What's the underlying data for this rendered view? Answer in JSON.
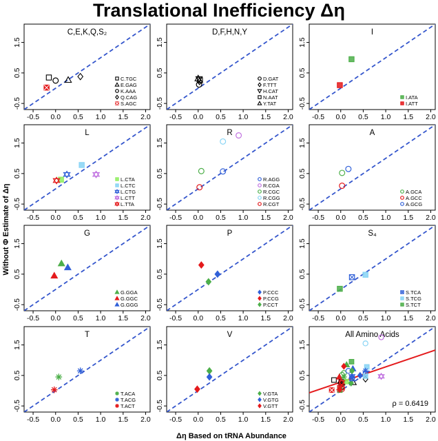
{
  "figure": {
    "title": "Translational Inefficiency Δη",
    "xlabel": "Δη Based on tRNA Abundance",
    "ylabel": "Without Φ Estimate of Δη"
  },
  "chart_data": [
    {
      "type": "scatter",
      "title": "C,E,K,Q,S₂",
      "xlim": [
        -0.7,
        2.1
      ],
      "ylim": [
        -0.7,
        2.1
      ],
      "xticks": [
        "-0.5",
        "0.0",
        "0.5",
        "1.0",
        "1.5",
        "2.0"
      ],
      "yticks": [
        "-0.5",
        "0.5",
        "1.5"
      ],
      "identity_line": true,
      "legend_position": "bottom-right",
      "series": [
        {
          "name": "C.TGC",
          "marker": "square",
          "color": "#000000",
          "x": [
            -0.15
          ],
          "y": [
            0.35
          ]
        },
        {
          "name": "E.GAG",
          "marker": "triangle",
          "color": "#000000",
          "x": [
            0.28
          ],
          "y": [
            0.27
          ]
        },
        {
          "name": "K.AAA",
          "marker": "circle",
          "color": "#000000",
          "x": [
            0.0
          ],
          "y": [
            0.25
          ]
        },
        {
          "name": "Q.CAG",
          "marker": "diamond",
          "color": "#000000",
          "x": [
            0.55
          ],
          "y": [
            0.38
          ]
        },
        {
          "name": "S.AGC",
          "marker": "square-x",
          "color": "#e41a1c",
          "x": [
            -0.2
          ],
          "y": [
            0.02
          ]
        }
      ]
    },
    {
      "type": "scatter",
      "title": "D,F,H,N,Y",
      "xlim": [
        -0.7,
        2.1
      ],
      "ylim": [
        -0.7,
        2.1
      ],
      "xticks": [
        "-0.5",
        "0.0",
        "0.5",
        "1.0",
        "1.5",
        "2.0"
      ],
      "yticks": [
        "-0.5",
        "0.5",
        "1.5"
      ],
      "identity_line": true,
      "legend_position": "bottom-right",
      "series": [
        {
          "name": "D.GAT",
          "marker": "circle",
          "color": "#000000",
          "x": [
            0.02
          ],
          "y": [
            0.12
          ]
        },
        {
          "name": "F.TTT",
          "marker": "diamond",
          "color": "#000000",
          "x": [
            0.03
          ],
          "y": [
            0.22
          ]
        },
        {
          "name": "H.CAT",
          "marker": "triangle-down",
          "color": "#000000",
          "x": [
            0.02
          ],
          "y": [
            0.3
          ]
        },
        {
          "name": "N.AAT",
          "marker": "square",
          "color": "#000000",
          "x": [
            0.04
          ],
          "y": [
            0.26
          ]
        },
        {
          "name": "Y.TAT",
          "marker": "triangle",
          "color": "#000000",
          "x": [
            0.0
          ],
          "y": [
            0.32
          ]
        }
      ]
    },
    {
      "type": "scatter",
      "title": "I",
      "xlim": [
        -0.7,
        2.1
      ],
      "ylim": [
        -0.7,
        2.1
      ],
      "xticks": [
        "-0.5",
        "0.0",
        "0.5",
        "1.0",
        "1.5",
        "2.0"
      ],
      "yticks": [
        "-0.5",
        "0.5",
        "1.5"
      ],
      "identity_line": true,
      "legend_position": "bottom-right",
      "series": [
        {
          "name": "I.ATA",
          "marker": "square",
          "color": "#4daf4a",
          "x": [
            0.24
          ],
          "y": [
            0.95
          ]
        },
        {
          "name": "I.ATT",
          "marker": "square",
          "color": "#e41a1c",
          "x": [
            -0.02
          ],
          "y": [
            0.1
          ]
        }
      ]
    },
    {
      "type": "scatter",
      "title": "L",
      "xlim": [
        -0.7,
        2.1
      ],
      "ylim": [
        -0.7,
        2.1
      ],
      "xticks": [
        "-0.5",
        "0.0",
        "0.5",
        "1.0",
        "1.5",
        "2.0"
      ],
      "yticks": [
        "-0.5",
        "0.5",
        "1.5"
      ],
      "identity_line": true,
      "legend_position": "bottom-right",
      "series": [
        {
          "name": "L.CTA",
          "marker": "square",
          "color": "#90ee60",
          "x": [
            0.12
          ],
          "y": [
            0.3
          ]
        },
        {
          "name": "L.CTC",
          "marker": "square",
          "color": "#87d4f5",
          "x": [
            0.58
          ],
          "y": [
            0.78
          ]
        },
        {
          "name": "L.CTG",
          "marker": "star",
          "color": "#3060d8",
          "x": [
            0.25
          ],
          "y": [
            0.47
          ]
        },
        {
          "name": "L.CTT",
          "marker": "star",
          "color": "#c070e0",
          "x": [
            0.9
          ],
          "y": [
            0.47
          ]
        },
        {
          "name": "L.TTA",
          "marker": "star",
          "color": "#e41a1c",
          "x": [
            0.02
          ],
          "y": [
            0.27
          ]
        }
      ]
    },
    {
      "type": "scatter",
      "title": "R",
      "xlim": [
        -0.7,
        2.1
      ],
      "ylim": [
        -0.7,
        2.1
      ],
      "xticks": [
        "-0.5",
        "0.0",
        "0.5",
        "1.0",
        "1.5",
        "2.0"
      ],
      "yticks": [
        "-0.5",
        "0.5",
        "1.5"
      ],
      "identity_line": true,
      "legend_position": "bottom-right",
      "series": [
        {
          "name": "R.AGG",
          "marker": "circle",
          "color": "#3060d8",
          "x": [
            0.55
          ],
          "y": [
            0.57
          ]
        },
        {
          "name": "R.CGA",
          "marker": "circle",
          "color": "#c070e0",
          "x": [
            0.9
          ],
          "y": [
            1.75
          ]
        },
        {
          "name": "R.CGC",
          "marker": "circle",
          "color": "#4daf4a",
          "x": [
            0.07
          ],
          "y": [
            0.58
          ]
        },
        {
          "name": "R.CGG",
          "marker": "circle",
          "color": "#87d4f5",
          "x": [
            0.55
          ],
          "y": [
            1.55
          ]
        },
        {
          "name": "R.CGT",
          "marker": "circle",
          "color": "#e41a1c",
          "x": [
            0.03
          ],
          "y": [
            0.05
          ]
        }
      ]
    },
    {
      "type": "scatter",
      "title": "A",
      "xlim": [
        -0.7,
        2.1
      ],
      "ylim": [
        -0.7,
        2.1
      ],
      "xticks": [
        "-0.5",
        "0.0",
        "0.5",
        "1.0",
        "1.5",
        "2.0"
      ],
      "yticks": [
        "-0.5",
        "0.5",
        "1.5"
      ],
      "identity_line": true,
      "legend_position": "bottom-right",
      "series": [
        {
          "name": "A.GCA",
          "marker": "circle",
          "color": "#4daf4a",
          "x": [
            0.03
          ],
          "y": [
            0.52
          ]
        },
        {
          "name": "A.GCC",
          "marker": "circle",
          "color": "#e41a1c",
          "x": [
            0.03
          ],
          "y": [
            0.1
          ]
        },
        {
          "name": "A.GCG",
          "marker": "circle",
          "color": "#3060d8",
          "x": [
            0.17
          ],
          "y": [
            0.65
          ]
        }
      ]
    },
    {
      "type": "scatter",
      "title": "G",
      "xlim": [
        -0.7,
        2.1
      ],
      "ylim": [
        -0.7,
        2.1
      ],
      "xticks": [
        "-0.5",
        "0.0",
        "0.5",
        "1.0",
        "1.5",
        "2.0"
      ],
      "yticks": [
        "-0.5",
        "0.5",
        "1.5"
      ],
      "identity_line": true,
      "legend_position": "bottom-right",
      "series": [
        {
          "name": "G.GGA",
          "marker": "triangle",
          "color": "#4daf4a",
          "x": [
            0.13
          ],
          "y": [
            0.85
          ]
        },
        {
          "name": "G.GGC",
          "marker": "triangle",
          "color": "#e41a1c",
          "x": [
            -0.03
          ],
          "y": [
            0.45
          ]
        },
        {
          "name": "G.GGG",
          "marker": "triangle",
          "color": "#3060d8",
          "x": [
            0.27
          ],
          "y": [
            0.72
          ]
        }
      ]
    },
    {
      "type": "scatter",
      "title": "P",
      "xlim": [
        -0.7,
        2.1
      ],
      "ylim": [
        -0.7,
        2.1
      ],
      "xticks": [
        "-0.5",
        "0.0",
        "0.5",
        "1.0",
        "1.5",
        "2.0"
      ],
      "yticks": [
        "-0.5",
        "0.5",
        "1.5"
      ],
      "identity_line": true,
      "legend_position": "bottom-right",
      "series": [
        {
          "name": "P.CCC",
          "marker": "diamond",
          "color": "#3060d8",
          "x": [
            0.43
          ],
          "y": [
            0.5
          ]
        },
        {
          "name": "P.CCG",
          "marker": "diamond",
          "color": "#e41a1c",
          "x": [
            0.07
          ],
          "y": [
            0.8
          ]
        },
        {
          "name": "P.CCT",
          "marker": "diamond",
          "color": "#4daf4a",
          "x": [
            0.23
          ],
          "y": [
            0.25
          ]
        }
      ]
    },
    {
      "type": "scatter",
      "title": "S₄",
      "xlim": [
        -0.7,
        2.1
      ],
      "ylim": [
        -0.7,
        2.1
      ],
      "xticks": [
        "-0.5",
        "0.0",
        "0.5",
        "1.0",
        "1.5",
        "2.0"
      ],
      "yticks": [
        "-0.5",
        "0.5",
        "1.5"
      ],
      "identity_line": true,
      "legend_position": "bottom-right",
      "series": [
        {
          "name": "S.TCA",
          "marker": "square-x",
          "color": "#3060d8",
          "x": [
            0.25
          ],
          "y": [
            0.4
          ]
        },
        {
          "name": "S.TCG",
          "marker": "square",
          "color": "#87d4f5",
          "x": [
            0.55
          ],
          "y": [
            0.48
          ]
        },
        {
          "name": "S.TCT",
          "marker": "square",
          "color": "#4daf4a",
          "x": [
            -0.02
          ],
          "y": [
            0.02
          ]
        }
      ]
    },
    {
      "type": "scatter",
      "title": "T",
      "xlim": [
        -0.7,
        2.1
      ],
      "ylim": [
        -0.7,
        2.1
      ],
      "xticks": [
        "-0.5",
        "0.0",
        "0.5",
        "1.0",
        "1.5",
        "2.0"
      ],
      "yticks": [
        "-0.5",
        "0.5",
        "1.5"
      ],
      "identity_line": true,
      "legend_position": "bottom-right",
      "series": [
        {
          "name": "T.ACA",
          "marker": "asterisk",
          "color": "#4daf4a",
          "x": [
            0.07
          ],
          "y": [
            0.45
          ]
        },
        {
          "name": "T.ACG",
          "marker": "asterisk",
          "color": "#3060d8",
          "x": [
            0.55
          ],
          "y": [
            0.65
          ]
        },
        {
          "name": "T.ACT",
          "marker": "asterisk",
          "color": "#e41a1c",
          "x": [
            -0.03
          ],
          "y": [
            0.03
          ]
        }
      ]
    },
    {
      "type": "scatter",
      "title": "V",
      "xlim": [
        -0.7,
        2.1
      ],
      "ylim": [
        -0.7,
        2.1
      ],
      "xticks": [
        "-0.5",
        "0.0",
        "0.5",
        "1.0",
        "1.5",
        "2.0"
      ],
      "yticks": [
        "-0.5",
        "0.5",
        "1.5"
      ],
      "identity_line": true,
      "legend_position": "bottom-right",
      "series": [
        {
          "name": "V.GTA",
          "marker": "diamond",
          "color": "#4daf4a",
          "x": [
            0.25
          ],
          "y": [
            0.65
          ]
        },
        {
          "name": "V.GTG",
          "marker": "diamond",
          "color": "#3060d8",
          "x": [
            0.25
          ],
          "y": [
            0.45
          ]
        },
        {
          "name": "V.GTT",
          "marker": "diamond",
          "color": "#e41a1c",
          "x": [
            -0.02
          ],
          "y": [
            0.05
          ]
        }
      ]
    },
    {
      "type": "scatter",
      "title": "All Amino Acids",
      "xlim": [
        -0.7,
        2.1
      ],
      "ylim": [
        -0.7,
        2.1
      ],
      "xticks": [
        "-0.5",
        "0.0",
        "0.5",
        "1.0",
        "1.5",
        "2.0"
      ],
      "yticks": [
        "-0.5",
        "0.5",
        "1.5"
      ],
      "identity_line": true,
      "fit_line": {
        "color": "#e41a1c",
        "slope": 0.5,
        "intercept": 0.28
      },
      "annotation": "ρ = 0.6419",
      "points": [
        {
          "marker": "square",
          "color": "#000000",
          "x": -0.15,
          "y": 0.35
        },
        {
          "marker": "triangle",
          "color": "#000000",
          "x": 0.28,
          "y": 0.27
        },
        {
          "marker": "circle",
          "color": "#000000",
          "x": 0.0,
          "y": 0.25
        },
        {
          "marker": "diamond",
          "color": "#000000",
          "x": 0.55,
          "y": 0.38
        },
        {
          "marker": "square-x",
          "color": "#e41a1c",
          "x": -0.2,
          "y": 0.02
        },
        {
          "marker": "circle",
          "color": "#000000",
          "x": 0.02,
          "y": 0.12
        },
        {
          "marker": "diamond",
          "color": "#000000",
          "x": 0.03,
          "y": 0.22
        },
        {
          "marker": "triangle-down",
          "color": "#000000",
          "x": 0.02,
          "y": 0.3
        },
        {
          "marker": "square",
          "color": "#000000",
          "x": 0.04,
          "y": 0.26
        },
        {
          "marker": "triangle",
          "color": "#000000",
          "x": 0.0,
          "y": 0.32
        },
        {
          "marker": "square",
          "color": "#4daf4a",
          "x": 0.24,
          "y": 0.95
        },
        {
          "marker": "square",
          "color": "#e41a1c",
          "x": -0.02,
          "y": 0.1
        },
        {
          "marker": "square",
          "color": "#90ee60",
          "x": 0.12,
          "y": 0.3
        },
        {
          "marker": "square",
          "color": "#87d4f5",
          "x": 0.58,
          "y": 0.78
        },
        {
          "marker": "star",
          "color": "#3060d8",
          "x": 0.25,
          "y": 0.47
        },
        {
          "marker": "star",
          "color": "#c070e0",
          "x": 0.9,
          "y": 0.47
        },
        {
          "marker": "star",
          "color": "#e41a1c",
          "x": 0.02,
          "y": 0.27
        },
        {
          "marker": "circle",
          "color": "#3060d8",
          "x": 0.55,
          "y": 0.57
        },
        {
          "marker": "circle",
          "color": "#c070e0",
          "x": 0.9,
          "y": 1.75
        },
        {
          "marker": "circle",
          "color": "#4daf4a",
          "x": 0.07,
          "y": 0.58
        },
        {
          "marker": "circle",
          "color": "#87d4f5",
          "x": 0.55,
          "y": 1.55
        },
        {
          "marker": "circle",
          "color": "#e41a1c",
          "x": 0.03,
          "y": 0.05
        },
        {
          "marker": "circle",
          "color": "#4daf4a",
          "x": 0.03,
          "y": 0.52
        },
        {
          "marker": "circle",
          "color": "#e41a1c",
          "x": 0.03,
          "y": 0.1
        },
        {
          "marker": "circle",
          "color": "#3060d8",
          "x": 0.17,
          "y": 0.65
        },
        {
          "marker": "triangle",
          "color": "#4daf4a",
          "x": 0.13,
          "y": 0.85
        },
        {
          "marker": "triangle",
          "color": "#e41a1c",
          "x": -0.03,
          "y": 0.45
        },
        {
          "marker": "triangle",
          "color": "#3060d8",
          "x": 0.27,
          "y": 0.72
        },
        {
          "marker": "diamond",
          "color": "#3060d8",
          "x": 0.43,
          "y": 0.5
        },
        {
          "marker": "diamond",
          "color": "#e41a1c",
          "x": 0.07,
          "y": 0.8
        },
        {
          "marker": "diamond",
          "color": "#4daf4a",
          "x": 0.23,
          "y": 0.25
        },
        {
          "marker": "square-x",
          "color": "#3060d8",
          "x": 0.25,
          "y": 0.4
        },
        {
          "marker": "square",
          "color": "#87d4f5",
          "x": 0.55,
          "y": 0.48
        },
        {
          "marker": "square",
          "color": "#4daf4a",
          "x": -0.02,
          "y": 0.02
        },
        {
          "marker": "asterisk",
          "color": "#4daf4a",
          "x": 0.07,
          "y": 0.45
        },
        {
          "marker": "asterisk",
          "color": "#3060d8",
          "x": 0.55,
          "y": 0.65
        },
        {
          "marker": "asterisk",
          "color": "#e41a1c",
          "x": -0.03,
          "y": 0.03
        },
        {
          "marker": "diamond",
          "color": "#4daf4a",
          "x": 0.25,
          "y": 0.65
        },
        {
          "marker": "diamond",
          "color": "#3060d8",
          "x": 0.25,
          "y": 0.45
        },
        {
          "marker": "diamond",
          "color": "#e41a1c",
          "x": -0.02,
          "y": 0.05
        }
      ]
    }
  ]
}
